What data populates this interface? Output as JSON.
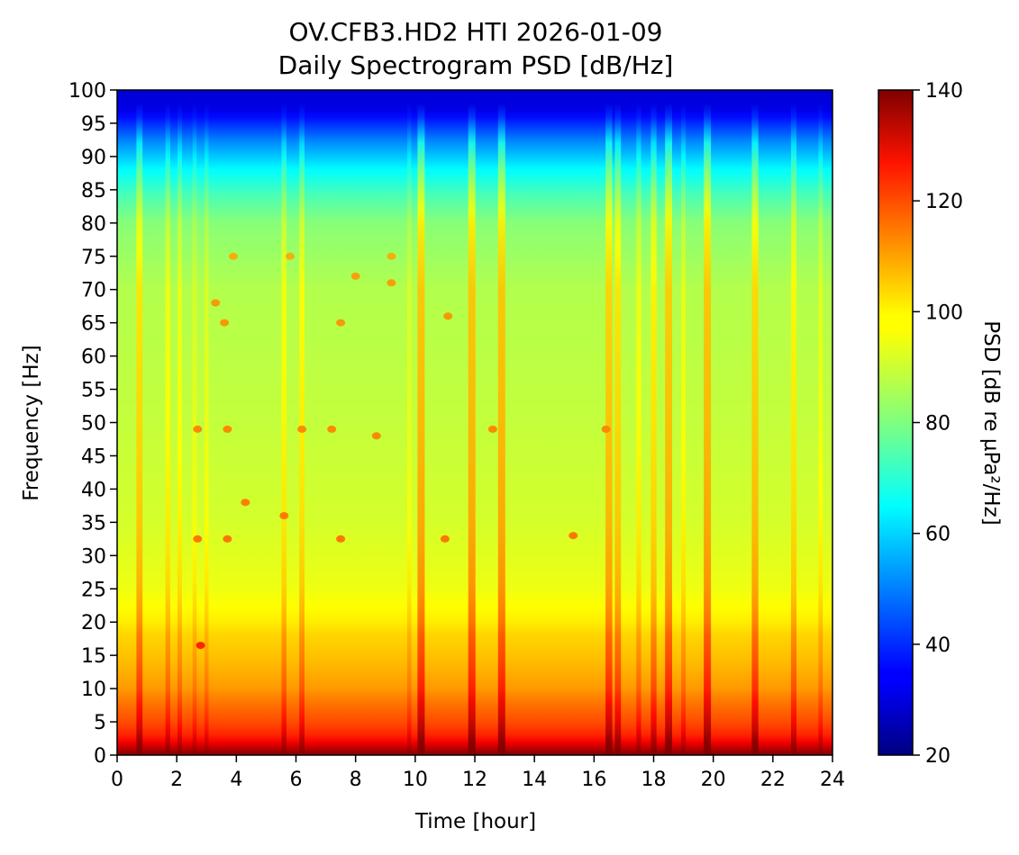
{
  "chart_data": {
    "type": "heatmap",
    "title_line1": "OV.CFB3.HD2 HTI 2026-01-09",
    "title_line2": "Daily Spectrogram PSD [dB/Hz]",
    "xlabel": "Time [hour]",
    "ylabel": "Frequency [Hz]",
    "colorbar_label": "PSD [dB re µPa²/Hz]",
    "colormap": "jet",
    "xlim": [
      0,
      24
    ],
    "ylim": [
      0,
      100
    ],
    "clim": [
      20,
      140
    ],
    "xticks": [
      0,
      2,
      4,
      6,
      8,
      10,
      12,
      14,
      16,
      18,
      20,
      22,
      24
    ],
    "yticks": [
      0,
      5,
      10,
      15,
      20,
      25,
      30,
      35,
      40,
      45,
      50,
      55,
      60,
      65,
      70,
      75,
      80,
      85,
      90,
      95,
      100
    ],
    "cticks": [
      20,
      40,
      60,
      80,
      100,
      120,
      140
    ],
    "frequency_profile_hz": [
      0,
      1,
      2,
      3,
      5,
      8,
      10,
      15,
      18,
      20,
      25,
      35,
      50,
      70,
      80,
      84,
      88,
      92,
      95,
      97,
      100
    ],
    "frequency_profile_db": [
      140,
      133,
      126,
      121,
      116,
      111,
      107,
      102,
      100,
      97,
      93,
      90,
      88,
      86,
      81,
      74,
      65,
      52,
      40,
      32,
      30
    ],
    "broadband_events": [
      {
        "hour": 0.75,
        "intensity": 0.75
      },
      {
        "hour": 1.7,
        "intensity": 0.45
      },
      {
        "hour": 2.1,
        "intensity": 0.4
      },
      {
        "hour": 2.6,
        "intensity": 0.3
      },
      {
        "hour": 3.0,
        "intensity": 0.3
      },
      {
        "hour": 5.6,
        "intensity": 0.5
      },
      {
        "hour": 6.2,
        "intensity": 0.55
      },
      {
        "hour": 9.8,
        "intensity": 0.3
      },
      {
        "hour": 10.2,
        "intensity": 1.0
      },
      {
        "hour": 11.9,
        "intensity": 1.0
      },
      {
        "hour": 12.9,
        "intensity": 1.0
      },
      {
        "hour": 16.5,
        "intensity": 0.9
      },
      {
        "hour": 16.8,
        "intensity": 0.75
      },
      {
        "hour": 17.5,
        "intensity": 0.45
      },
      {
        "hour": 18.0,
        "intensity": 0.65
      },
      {
        "hour": 18.5,
        "intensity": 0.95
      },
      {
        "hour": 19.0,
        "intensity": 0.4
      },
      {
        "hour": 19.8,
        "intensity": 1.0
      },
      {
        "hour": 21.4,
        "intensity": 0.85
      },
      {
        "hour": 22.7,
        "intensity": 0.6
      },
      {
        "hour": 23.6,
        "intensity": 0.35
      }
    ],
    "tonal_spots": [
      {
        "hour": 2.7,
        "hz": 49
      },
      {
        "hour": 3.3,
        "hz": 68
      },
      {
        "hour": 3.6,
        "hz": 65
      },
      {
        "hour": 3.7,
        "hz": 49
      },
      {
        "hour": 3.7,
        "hz": 32.5
      },
      {
        "hour": 3.9,
        "hz": 75
      },
      {
        "hour": 4.3,
        "hz": 38
      },
      {
        "hour": 5.6,
        "hz": 36
      },
      {
        "hour": 5.8,
        "hz": 75
      },
      {
        "hour": 6.2,
        "hz": 49
      },
      {
        "hour": 7.2,
        "hz": 49
      },
      {
        "hour": 7.5,
        "hz": 32.5
      },
      {
        "hour": 7.5,
        "hz": 65
      },
      {
        "hour": 8.0,
        "hz": 72
      },
      {
        "hour": 8.7,
        "hz": 48
      },
      {
        "hour": 9.2,
        "hz": 75
      },
      {
        "hour": 9.2,
        "hz": 71
      },
      {
        "hour": 11.1,
        "hz": 66
      },
      {
        "hour": 11.0,
        "hz": 32.5
      },
      {
        "hour": 12.6,
        "hz": 49
      },
      {
        "hour": 15.3,
        "hz": 33
      },
      {
        "hour": 16.4,
        "hz": 49
      },
      {
        "hour": 2.7,
        "hz": 32.5
      },
      {
        "hour": 2.8,
        "hz": 16.5
      }
    ]
  }
}
